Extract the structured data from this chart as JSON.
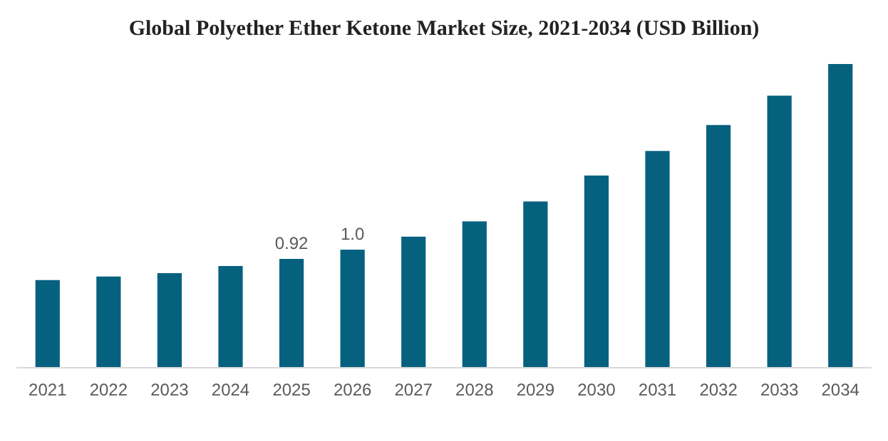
{
  "chart_data": {
    "type": "bar",
    "title": "Global Polyether Ether Ketone Market Size, 2021-2034 (USD Billion)",
    "categories": [
      "2021",
      "2022",
      "2023",
      "2024",
      "2025",
      "2026",
      "2027",
      "2028",
      "2029",
      "2030",
      "2031",
      "2032",
      "2033",
      "2034"
    ],
    "values": [
      0.74,
      0.77,
      0.8,
      0.86,
      0.92,
      1.0,
      1.11,
      1.24,
      1.41,
      1.63,
      1.84,
      2.06,
      2.31,
      2.58
    ],
    "value_labels": [
      null,
      null,
      null,
      null,
      "0.92",
      "1.0",
      null,
      null,
      null,
      null,
      null,
      null,
      null,
      null
    ],
    "color": "#06617f",
    "tick_labels": "x"
  }
}
